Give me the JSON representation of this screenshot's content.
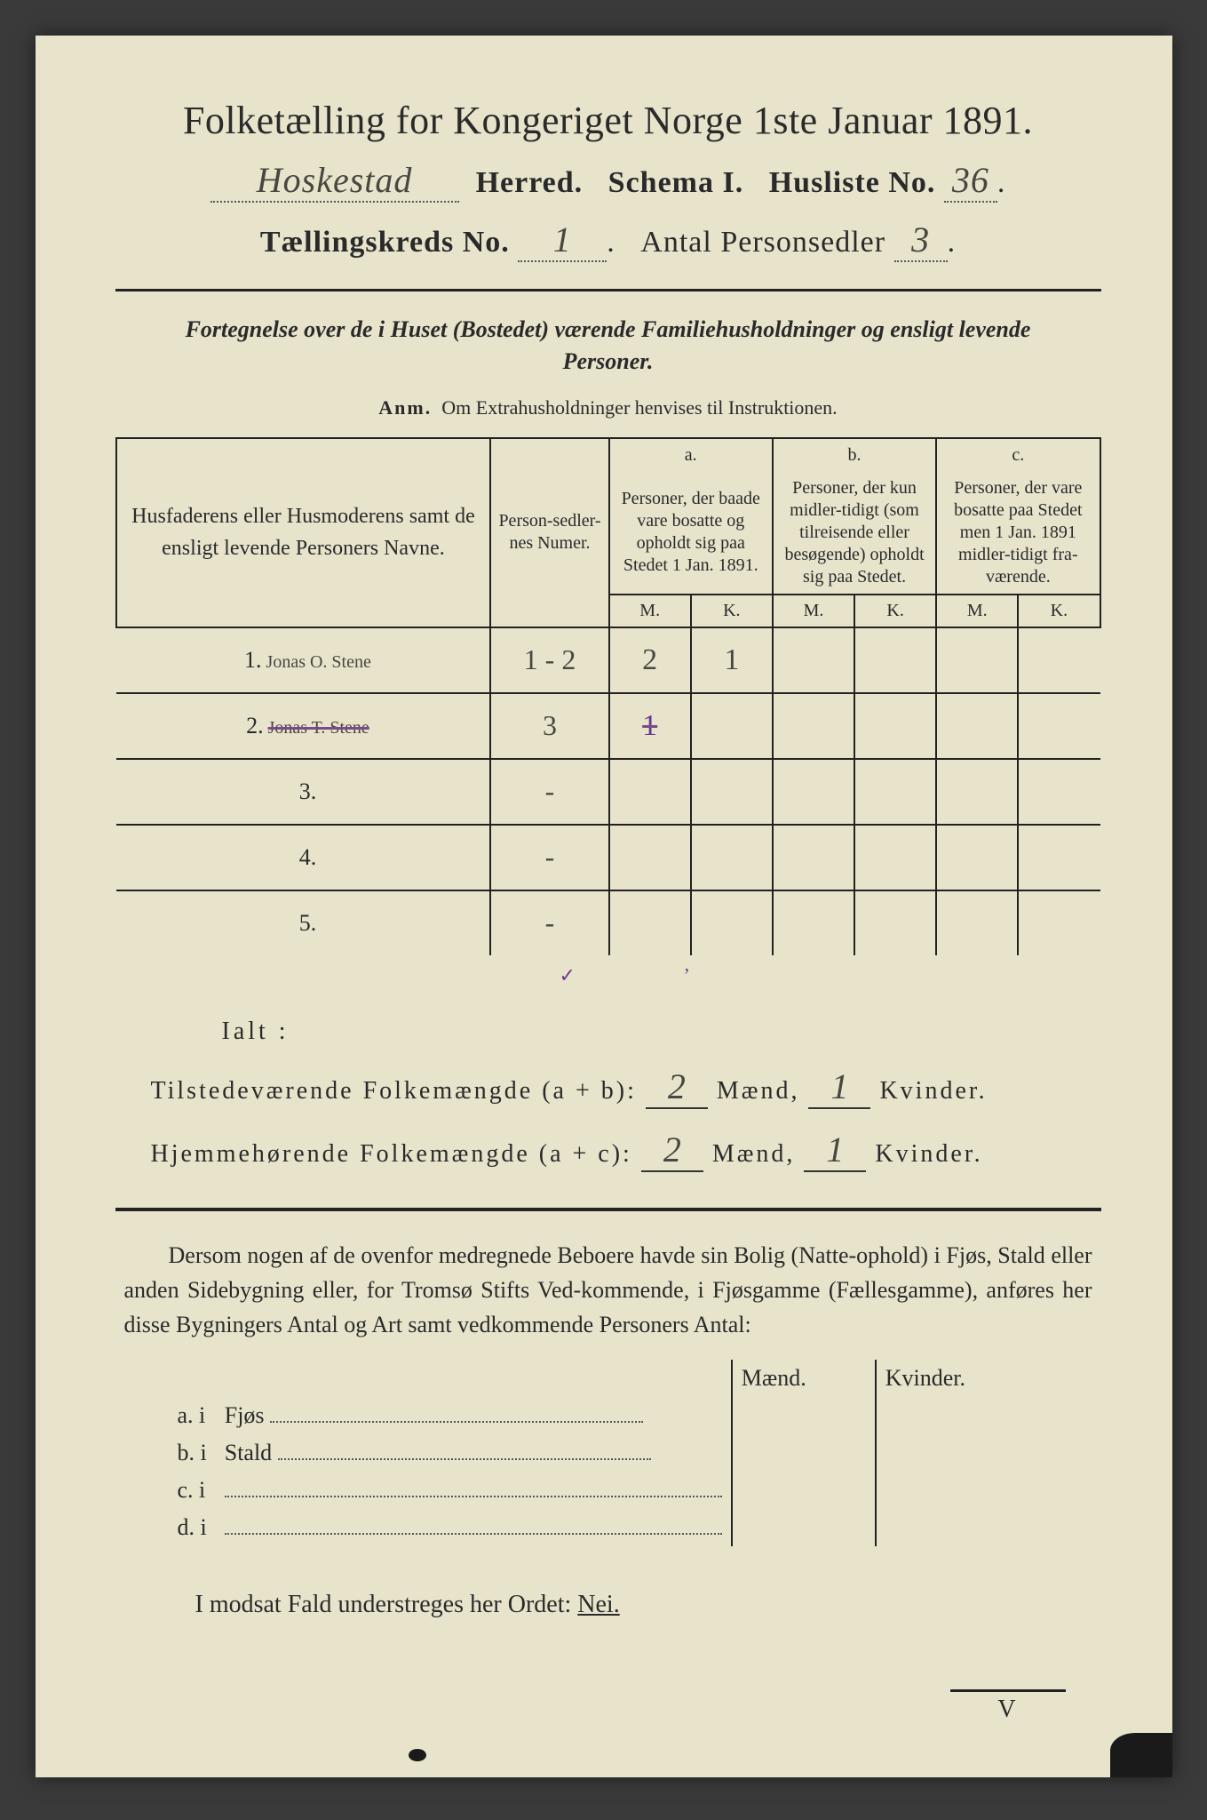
{
  "header": {
    "title": "Folketælling for Kongeriget Norge 1ste Januar 1891.",
    "herred_hw": "Hoskestad",
    "herred_label": "Herred.",
    "schema_label": "Schema I.",
    "husliste_label": "Husliste No.",
    "husliste_no_hw": "36",
    "kreds_label": "Tællingskreds No.",
    "kreds_no_hw": "1",
    "antal_label": "Antal Personsedler",
    "antal_hw": "3"
  },
  "subhead": {
    "text": "Fortegnelse over de i Huset (Bostedet) værende Familiehusholdninger og ensligt levende Personer.",
    "anm_label": "Anm.",
    "anm_text": "Om Extrahusholdninger henvises til Instruktionen."
  },
  "table": {
    "col_name": "Husfaderens eller Husmoderens samt de ensligt levende Personers Navne.",
    "col_numer": "Person-sedler-nes Numer.",
    "col_a_label": "a.",
    "col_a_text": "Personer, der baade vare bosatte og opholdt sig paa Stedet 1 Jan. 1891.",
    "col_b_label": "b.",
    "col_b_text": "Personer, der kun midler-tidigt (som tilreisende eller besøgende) opholdt sig paa Stedet.",
    "col_c_label": "c.",
    "col_c_text": "Personer, der vare bosatte paa Stedet men 1 Jan. 1891 midler-tidigt fra-værende.",
    "m": "M.",
    "k": "K.",
    "rows": [
      {
        "n": "1.",
        "name": "Jonas O. Stene",
        "numer": "1 - 2",
        "a_m": "2",
        "a_k": "1",
        "struck": false
      },
      {
        "n": "2.",
        "name": "Jonas T. Stene",
        "numer": "3",
        "a_m": "1",
        "a_k": "",
        "struck": true
      },
      {
        "n": "3.",
        "name": "",
        "numer": "-",
        "a_m": "",
        "a_k": "",
        "struck": false
      },
      {
        "n": "4.",
        "name": "",
        "numer": "-",
        "a_m": "",
        "a_k": "",
        "struck": false
      },
      {
        "n": "5.",
        "name": "",
        "numer": "-",
        "a_m": "",
        "a_k": "",
        "struck": false
      }
    ]
  },
  "ialt": {
    "label": "Ialt :",
    "check_a": "✓",
    "check_b": "ʼ"
  },
  "totals": {
    "tilstede_label": "Tilstedeværende Folkemængde (a + b):",
    "hjemme_label": "Hjemmehørende Folkemængde (a + c):",
    "maend": "Mænd,",
    "kvinder": "Kvinder.",
    "til_m": "2",
    "til_k": "1",
    "hj_m": "2",
    "hj_k": "1"
  },
  "para": {
    "text": "Dersom nogen af de ovenfor medregnede Beboere havde sin Bolig (Natte-ophold) i Fjøs, Stald eller anden Sidebygning eller, for Tromsø Stifts Ved-kommende, i Fjøsgamme (Fællesgamme), anføres her disse Bygningers Antal og Art samt vedkommende Personers Antal:"
  },
  "lower": {
    "maend": "Mænd.",
    "kvinder": "Kvinder.",
    "rows": [
      {
        "label": "a.  i",
        "type": "Fjøs"
      },
      {
        "label": "b.  i",
        "type": "Stald"
      },
      {
        "label": "c.  i",
        "type": ""
      },
      {
        "label": "d.  i",
        "type": ""
      }
    ]
  },
  "final": {
    "text_pre": "I modsat Fald understreges her Ordet: ",
    "nei": "Nei."
  },
  "corner": "V",
  "colors": {
    "paper": "#e8e4cc",
    "ink": "#2a2a2a",
    "handwriting": "#4a4640",
    "purple": "#6a3a8a"
  }
}
